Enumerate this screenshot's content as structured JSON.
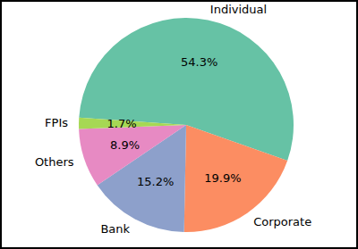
{
  "chart_data": {
    "type": "pie",
    "categories": [
      "Individual",
      "Corporate",
      "Bank",
      "Others",
      "FPIs"
    ],
    "values": [
      54.3,
      19.9,
      15.2,
      8.9,
      1.7
    ],
    "value_labels": [
      "54.3%",
      "19.9%",
      "15.2%",
      "8.9%",
      "1.7%"
    ],
    "colors": [
      "#66c2a5",
      "#fc8d62",
      "#8da0cb",
      "#e78ac3",
      "#a6d854"
    ],
    "data_labels": true
  }
}
